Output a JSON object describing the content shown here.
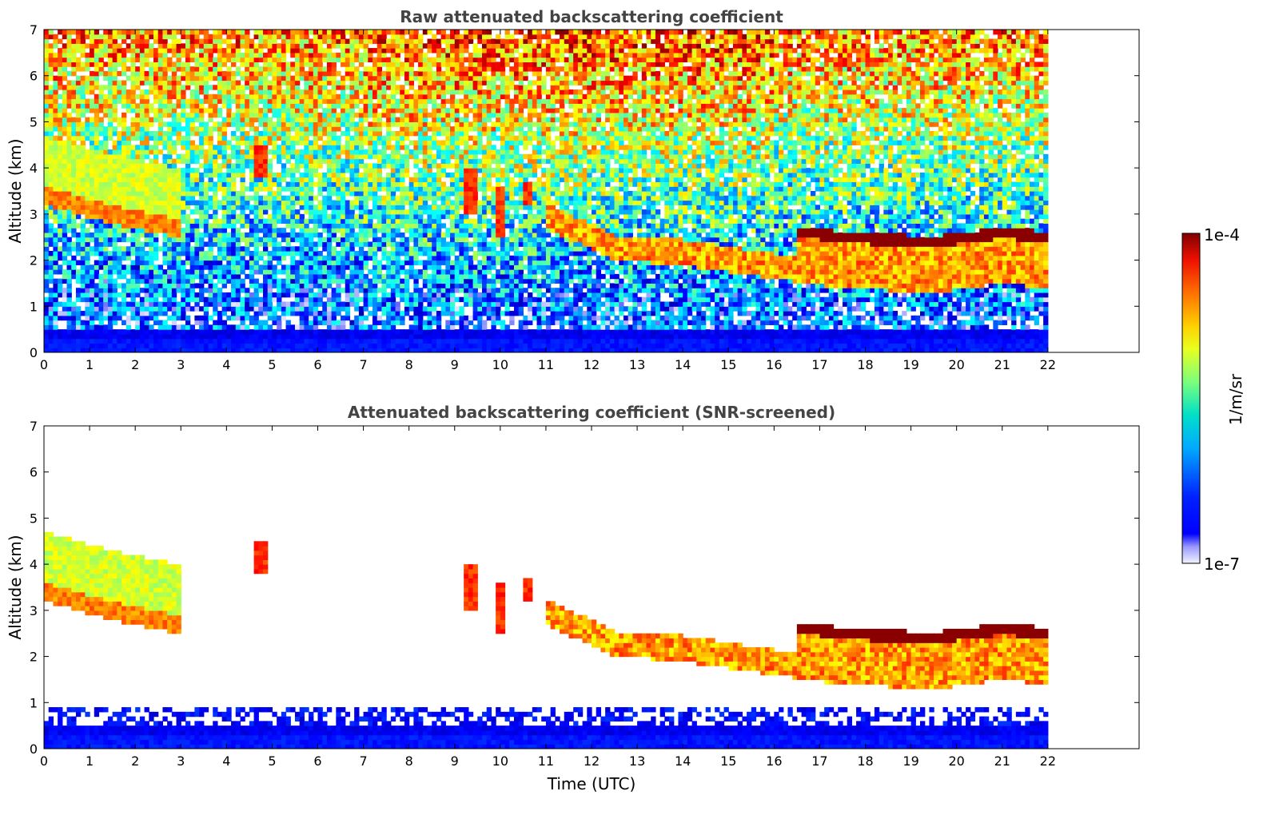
{
  "chart_data": [
    {
      "type": "heatmap",
      "title": "Raw attenuated backscattering coefficient",
      "xlabel": "",
      "ylabel": "Altitude (km)",
      "xlim": [
        0,
        24
      ],
      "ylim": [
        0,
        7
      ],
      "xticks": [
        "0",
        "1",
        "2",
        "3",
        "4",
        "5",
        "6",
        "7",
        "8",
        "9",
        "10",
        "11",
        "12",
        "13",
        "14",
        "15",
        "16",
        "17",
        "18",
        "19",
        "20",
        "21",
        "22"
      ],
      "yticks": [
        "0",
        "1",
        "2",
        "3",
        "4",
        "5",
        "6",
        "7"
      ],
      "data_extent_x": [
        0,
        22
      ],
      "screened": false,
      "cloud_layer_base_km": [
        {
          "t": 0,
          "z": 3.2
        },
        {
          "t": 1.5,
          "z": 2.8
        },
        {
          "t": 2.9,
          "z": 2.5
        },
        {
          "t": 11,
          "z": 2.7
        },
        {
          "t": 12.5,
          "z": 2.0
        },
        {
          "t": 14,
          "z": 1.9
        },
        {
          "t": 16,
          "z": 1.6
        },
        {
          "t": 17.5,
          "z": 1.4
        },
        {
          "t": 19.5,
          "z": 1.3
        },
        {
          "t": 21,
          "z": 1.5
        },
        {
          "t": 22,
          "z": 1.4
        }
      ]
    },
    {
      "type": "heatmap",
      "title": "Attenuated backscattering coefficient (SNR-screened)",
      "xlabel": "Time (UTC)",
      "ylabel": "Altitude (km)",
      "xlim": [
        0,
        24
      ],
      "ylim": [
        0,
        7
      ],
      "xticks": [
        "0",
        "1",
        "2",
        "3",
        "4",
        "5",
        "6",
        "7",
        "8",
        "9",
        "10",
        "11",
        "12",
        "13",
        "14",
        "15",
        "16",
        "17",
        "18",
        "19",
        "20",
        "21",
        "22"
      ],
      "yticks": [
        "0",
        "1",
        "2",
        "3",
        "4",
        "5",
        "6",
        "7"
      ],
      "data_extent_x": [
        0,
        22
      ],
      "screened": true
    }
  ],
  "colorbar": {
    "label": "1/m/sr",
    "max_label": "1e-4",
    "min_label": "1e-7",
    "colormap": "jet"
  }
}
